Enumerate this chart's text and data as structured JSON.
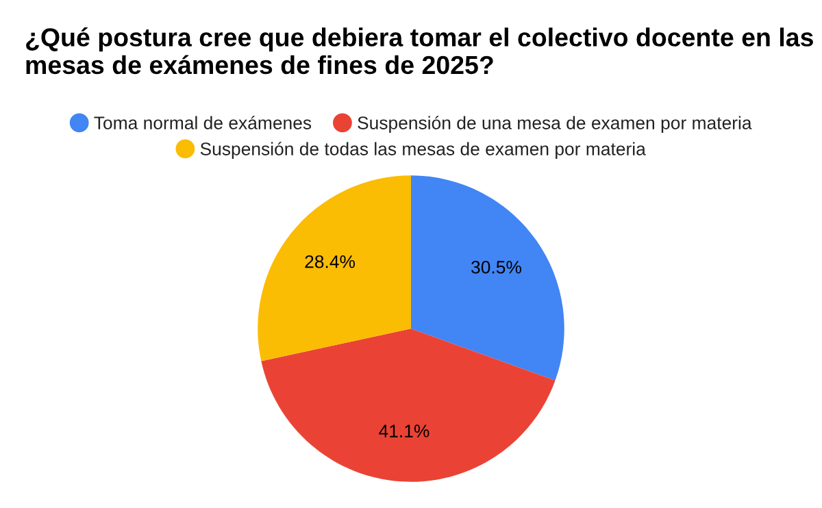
{
  "chart_data": {
    "type": "pie",
    "title": "¿Qué postura cree que debiera tomar el colectivo docente en las mesas de exámenes de fines de 2025?",
    "categories": [
      "Toma normal de exámenes",
      "Suspensión de una mesa de examen por materia",
      "Suspensión de todas las mesas de examen por materia"
    ],
    "values": [
      30.5,
      41.1,
      28.4
    ],
    "colors": [
      "#4285f4",
      "#ea4335",
      "#fbbc04"
    ],
    "value_labels": [
      "30.5%",
      "41.1%",
      "28.4%"
    ],
    "legend": "top"
  }
}
